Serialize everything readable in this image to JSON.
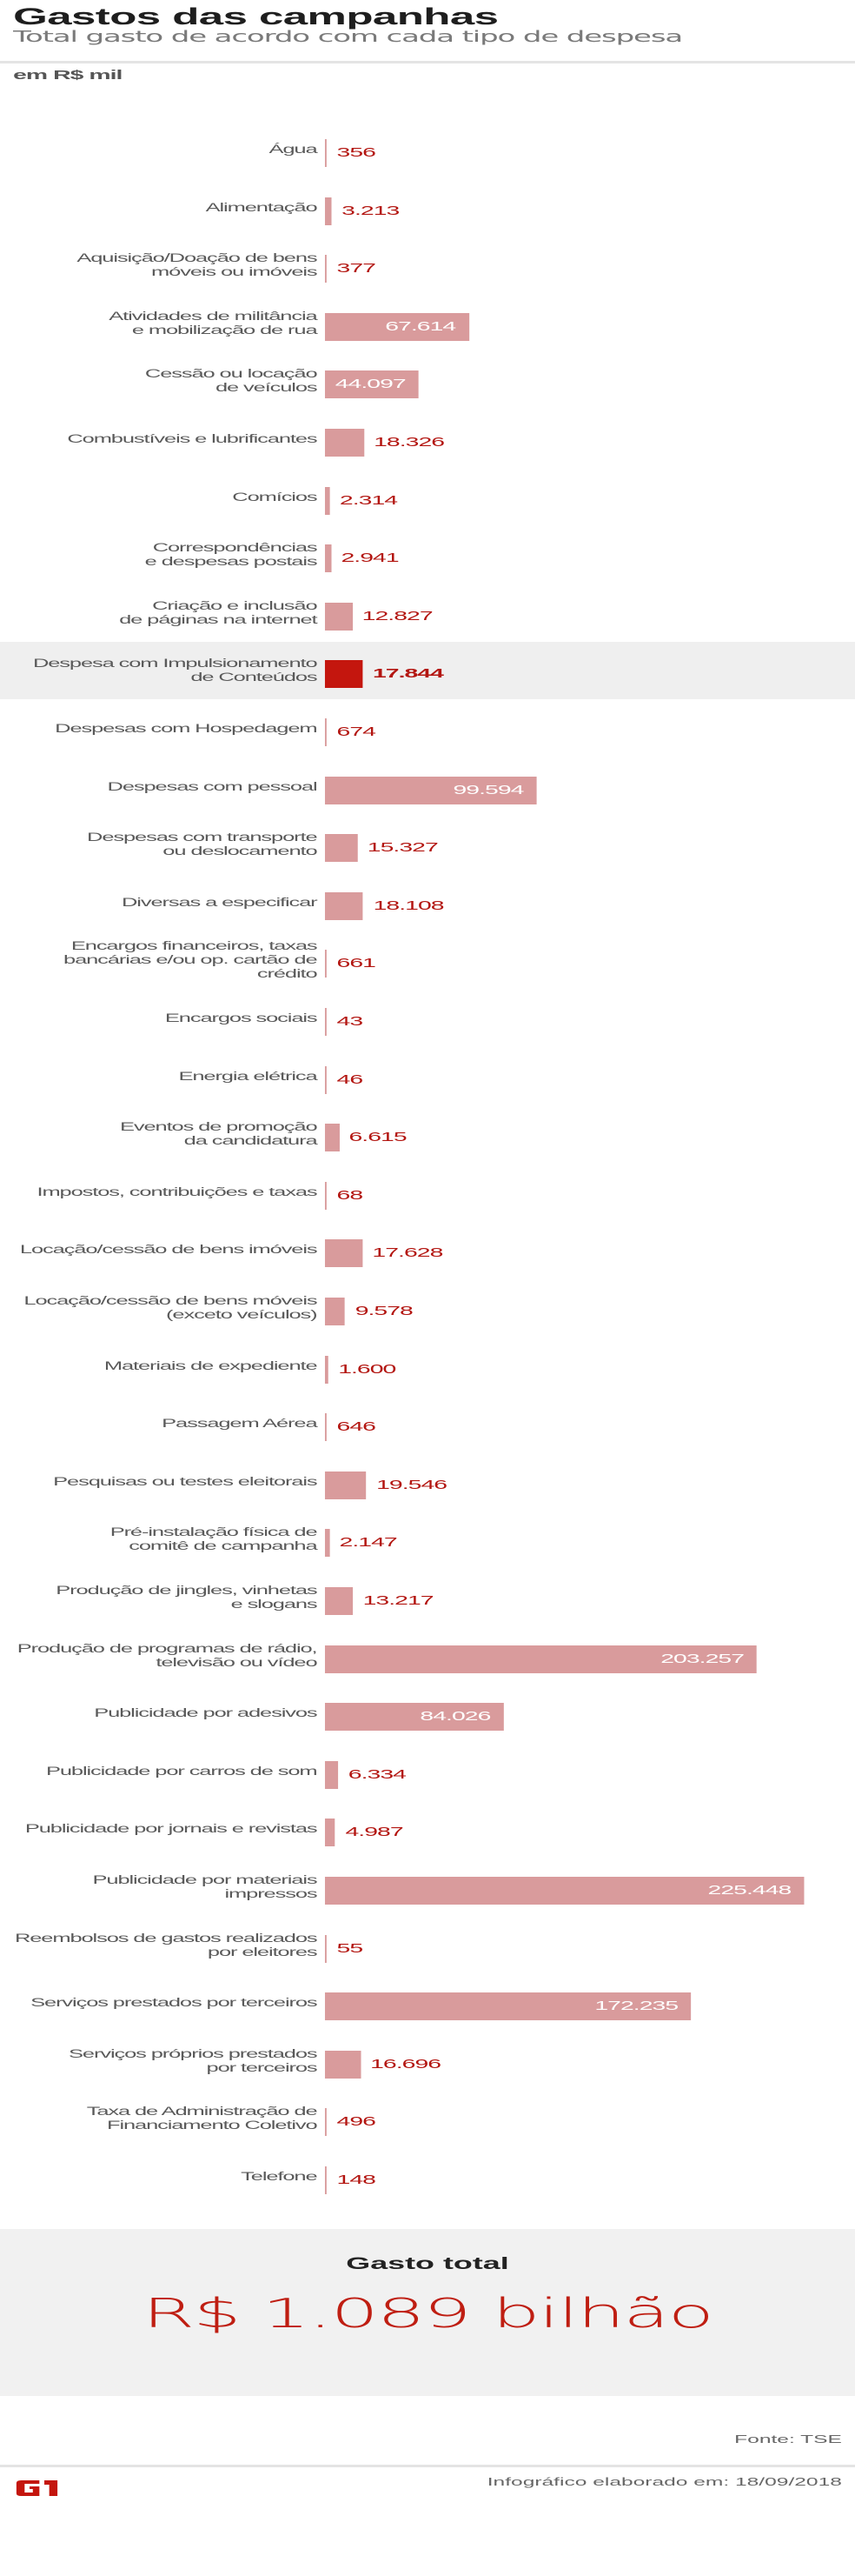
{
  "header": {
    "title": "Gastos das campanhas",
    "subtitle": "Total gasto de acordo com cada tipo de despesa",
    "unit": "em R$ mil"
  },
  "colors": {
    "bar": "#d99b9c",
    "highlight_bar": "#c4160e",
    "value_text": "#b31510",
    "highlight_row_bg": "#efefef"
  },
  "chart_data": {
    "type": "bar",
    "orientation": "horizontal",
    "title": "Gastos das campanhas",
    "subtitle": "Total gasto de acordo com cada tipo de despesa",
    "xlabel": "",
    "ylabel": "em R$ mil",
    "highlighted_category": "Despesa com Impulsionamento de Conteúdos",
    "categories": [
      "Água",
      "Alimentação",
      "Aquisição/Doação de bens\nmóveis ou imóveis",
      "Atividades de militância\ne mobilização de rua",
      "Cessão ou locação\nde veículos",
      "Combustíveis e lubrificantes",
      "Comícios",
      "Correspondências\ne despesas postais",
      "Criação e inclusão\nde páginas na internet",
      "Despesa com Impulsionamento\nde Conteúdos",
      "Despesas com Hospedagem",
      "Despesas com pessoal",
      "Despesas com transporte\nou deslocamento",
      "Diversas a especificar",
      "Encargos financeiros, taxas\nbancárias  e/ou op. cartão de crédito",
      "Encargos sociais",
      "Energia elétrica",
      "Eventos de promoção\nda candidatura",
      "Impostos, contribuições e taxas",
      "Locação/cessão de bens imóveis",
      "Locação/cessão de bens móveis\n(exceto veículos)",
      "Materiais de expediente",
      "Passagem Aérea",
      "Pesquisas ou testes eleitorais",
      "Pré-instalação física de\ncomitê de campanha",
      "Produção de jingles, vinhetas\ne slogans",
      "Produção de programas de rádio,\ntelevisão ou vídeo",
      "Publicidade por adesivos",
      "Publicidade por carros de som",
      "Publicidade por jornais e revistas",
      "Publicidade por materiais impressos",
      "Reembolsos de gastos realizados\npor eleitores",
      "Serviços prestados por terceiros",
      "Serviços próprios prestados\npor terceiros",
      "Taxa de Administração de\nFinanciamento Coletivo",
      "Telefone"
    ],
    "values": [
      356,
      3213,
      377,
      67614,
      44097,
      18326,
      2314,
      2941,
      12827,
      17844,
      674,
      99594,
      15327,
      18108,
      661,
      43,
      46,
      6615,
      68,
      17628,
      9578,
      1600,
      646,
      19546,
      2147,
      13217,
      203257,
      84026,
      6334,
      4987,
      225448,
      55,
      172235,
      16696,
      496,
      148
    ],
    "value_labels": [
      "356",
      "3.213",
      "377",
      "67.614",
      "44.097",
      "18.326",
      "2.314",
      "2.941",
      "12.827",
      "17.844",
      "674",
      "99.594",
      "15.327",
      "18.108",
      "661",
      "43",
      "46",
      "6.615",
      "68",
      "17.628",
      "9.578",
      "1.600",
      "646",
      "19.546",
      "2.147",
      "13.217",
      "203.257",
      "84.026",
      "6.334",
      "4.987",
      "225.448",
      "55",
      "172.235",
      "16.696",
      "496",
      "148"
    ],
    "xlim": [
      0,
      225448
    ],
    "grid": false,
    "legend": "none"
  },
  "total": {
    "label": "Gasto total",
    "value": "R$ 1.089 bilhão"
  },
  "footer": {
    "source": "Fonte: TSE",
    "date": "Infográfico elaborado em: 18/09/2018",
    "logo": "G1"
  }
}
